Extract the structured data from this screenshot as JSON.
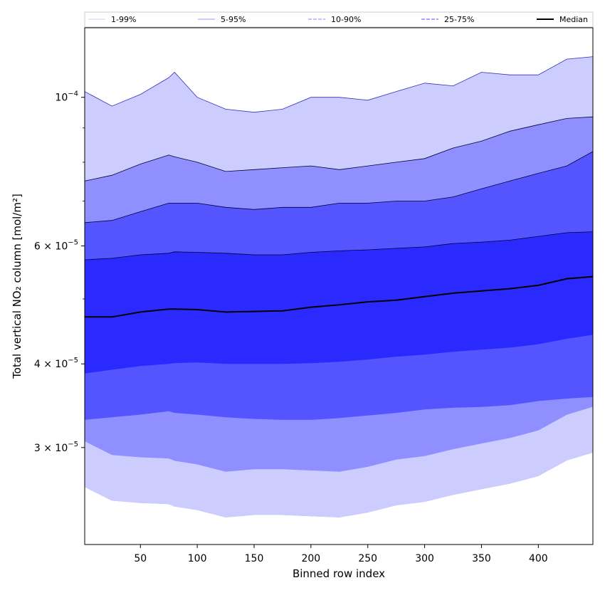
{
  "chart_data": {
    "type": "area",
    "xlabel": "Binned row index",
    "ylabel": "Total vertical NO₂ column [mol/m²]",
    "y_scale": "log",
    "xlim": [
      1,
      448
    ],
    "ylim": [
      2.15e-05,
      0.000127
    ],
    "x_ticks": [
      50,
      100,
      150,
      200,
      250,
      300,
      350,
      400
    ],
    "x_tick_labels": [
      "50",
      "100",
      "150",
      "200",
      "250",
      "300",
      "350",
      "400"
    ],
    "y_ticks": [
      3e-05,
      4e-05,
      6e-05,
      0.0001
    ],
    "y_tick_labels": [
      [
        "3 × 10",
        "−5"
      ],
      [
        "4 × 10",
        "−5"
      ],
      [
        "6 × 10",
        "−5"
      ],
      [
        "10",
        "−4"
      ]
    ],
    "y_minor_ticks": [
      5e-05,
      7e-05,
      8e-05,
      9e-05
    ],
    "grid": false,
    "legend_position": "top",
    "legend": [
      {
        "label": "1-99%",
        "color": "#ccccff",
        "style": "solid"
      },
      {
        "label": "5-95%",
        "color": "#9999ff",
        "style": "solid"
      },
      {
        "label": "10-90%",
        "color": "#8080ff",
        "style": "dashed"
      },
      {
        "label": "25-75%",
        "color": "#4d4dff",
        "style": "dashed"
      },
      {
        "label": "Median",
        "color": "#000000",
        "style": "solid"
      }
    ],
    "x": [
      1,
      25,
      50,
      75,
      80,
      100,
      125,
      150,
      175,
      200,
      225,
      250,
      275,
      300,
      325,
      350,
      375,
      400,
      425,
      448
    ],
    "bands": [
      {
        "name": "1-99%",
        "color": "#ccccff",
        "upper": [
          0.000102,
          9.7e-05,
          0.000101,
          0.000107,
          0.000109,
          0.0001,
          9.6e-05,
          9.5e-05,
          9.6e-05,
          0.0001,
          0.0001,
          9.9e-05,
          0.000102,
          0.000105,
          0.000104,
          0.000109,
          0.000108,
          0.000108,
          0.000114,
          0.000115
        ],
        "lower": [
          2.62e-05,
          2.5e-05,
          2.48e-05,
          2.47e-05,
          2.45e-05,
          2.42e-05,
          2.36e-05,
          2.38e-05,
          2.38e-05,
          2.37e-05,
          2.36e-05,
          2.4e-05,
          2.46e-05,
          2.49e-05,
          2.55e-05,
          2.6e-05,
          2.65e-05,
          2.72e-05,
          2.87e-05,
          2.95e-05
        ]
      },
      {
        "name": "5-95%",
        "color": "#8f8fff",
        "upper": [
          7.5e-05,
          7.65e-05,
          7.95e-05,
          8.2e-05,
          8.15e-05,
          8e-05,
          7.75e-05,
          7.8e-05,
          7.85e-05,
          7.9e-05,
          7.8e-05,
          7.9e-05,
          8e-05,
          8.1e-05,
          8.4e-05,
          8.6e-05,
          8.9e-05,
          9.1e-05,
          9.3e-05,
          9.35e-05
        ]
      },
      {
        "name": "10-90%",
        "color": "#5555ff",
        "upper": [
          6.5e-05,
          6.55e-05,
          6.75e-05,
          6.95e-05,
          6.95e-05,
          6.95e-05,
          6.85e-05,
          6.8e-05,
          6.85e-05,
          6.85e-05,
          6.95e-05,
          6.95e-05,
          7e-05,
          7e-05,
          7.1e-05,
          7.3e-05,
          7.5e-05,
          7.7e-05,
          7.9e-05,
          8.3e-05
        ],
        "lower": [
          3.3e-05,
          3.33e-05,
          3.36e-05,
          3.4e-05,
          3.38e-05,
          3.36e-05,
          3.33e-05,
          3.31e-05,
          3.3e-05,
          3.3e-05,
          3.32e-05,
          3.35e-05,
          3.38e-05,
          3.42e-05,
          3.44e-05,
          3.45e-05,
          3.47e-05,
          3.52e-05,
          3.55e-05,
          3.57e-05
        ]
      },
      {
        "name": "25-75%",
        "color": "#2a2aff",
        "upper": [
          5.72e-05,
          5.75e-05,
          5.82e-05,
          5.85e-05,
          5.88e-05,
          5.87e-05,
          5.85e-05,
          5.82e-05,
          5.82e-05,
          5.87e-05,
          5.9e-05,
          5.92e-05,
          5.95e-05,
          5.98e-05,
          6.05e-05,
          6.08e-05,
          6.12e-05,
          6.2e-05,
          6.28e-05,
          6.3e-05
        ],
        "lower": [
          3.87e-05,
          3.92e-05,
          3.97e-05,
          4e-05,
          4.01e-05,
          4.02e-05,
          4e-05,
          4e-05,
          4e-05,
          4.01e-05,
          4.03e-05,
          4.06e-05,
          4.1e-05,
          4.13e-05,
          4.17e-05,
          4.2e-05,
          4.23e-05,
          4.28e-05,
          4.36e-05,
          4.42e-05
        ]
      }
    ],
    "median": {
      "name": "Median",
      "color": "#000000",
      "values": [
        4.7e-05,
        4.7e-05,
        4.78e-05,
        4.83e-05,
        4.83e-05,
        4.82e-05,
        4.78e-05,
        4.79e-05,
        4.8e-05,
        4.86e-05,
        4.9e-05,
        4.95e-05,
        4.98e-05,
        5.04e-05,
        5.1e-05,
        5.14e-05,
        5.18e-05,
        5.24e-05,
        5.36e-05,
        5.4e-05
      ]
    }
  }
}
